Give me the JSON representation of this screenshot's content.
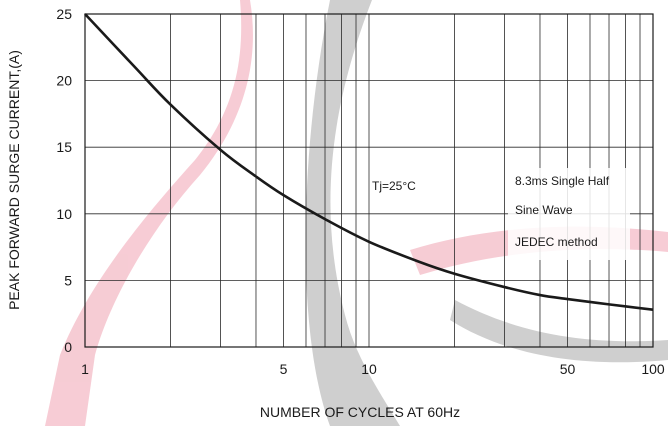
{
  "chart_data": {
    "type": "line",
    "xscale": "log",
    "xlim": [
      1,
      100
    ],
    "ylim": [
      0,
      25
    ],
    "grid": true,
    "xlabel": "NUMBER OF CYCLES AT 60Hz",
    "ylabel": "PEAK FORWARD SURGE CURRENT,(A)",
    "x_ticks": [
      {
        "value": 1,
        "label": "1"
      },
      {
        "value": 5,
        "label": "5"
      },
      {
        "value": 10,
        "label": "10"
      },
      {
        "value": 50,
        "label": "50"
      },
      {
        "value": 100,
        "label": "100"
      }
    ],
    "y_ticks": [
      {
        "value": 0,
        "label": "0"
      },
      {
        "value": 5,
        "label": "5"
      },
      {
        "value": 10,
        "label": "10"
      },
      {
        "value": 15,
        "label": "15"
      },
      {
        "value": 20,
        "label": "20"
      },
      {
        "value": 25,
        "label": "25"
      }
    ],
    "series": [
      {
        "color": "#1a1a1a",
        "x": [
          1,
          1.5,
          2,
          3,
          4,
          5,
          7,
          10,
          15,
          20,
          30,
          40,
          50,
          70,
          100
        ],
        "y": [
          25,
          21.0,
          18.2,
          14.8,
          12.8,
          11.4,
          9.6,
          7.9,
          6.4,
          5.5,
          4.5,
          3.9,
          3.6,
          3.2,
          2.8
        ]
      }
    ],
    "annotations": {
      "tj": "Tj=25°C",
      "note_line1": "8.3ms Single Half",
      "note_line2": "Sine Wave",
      "note_line3": "JEDEC method"
    }
  }
}
